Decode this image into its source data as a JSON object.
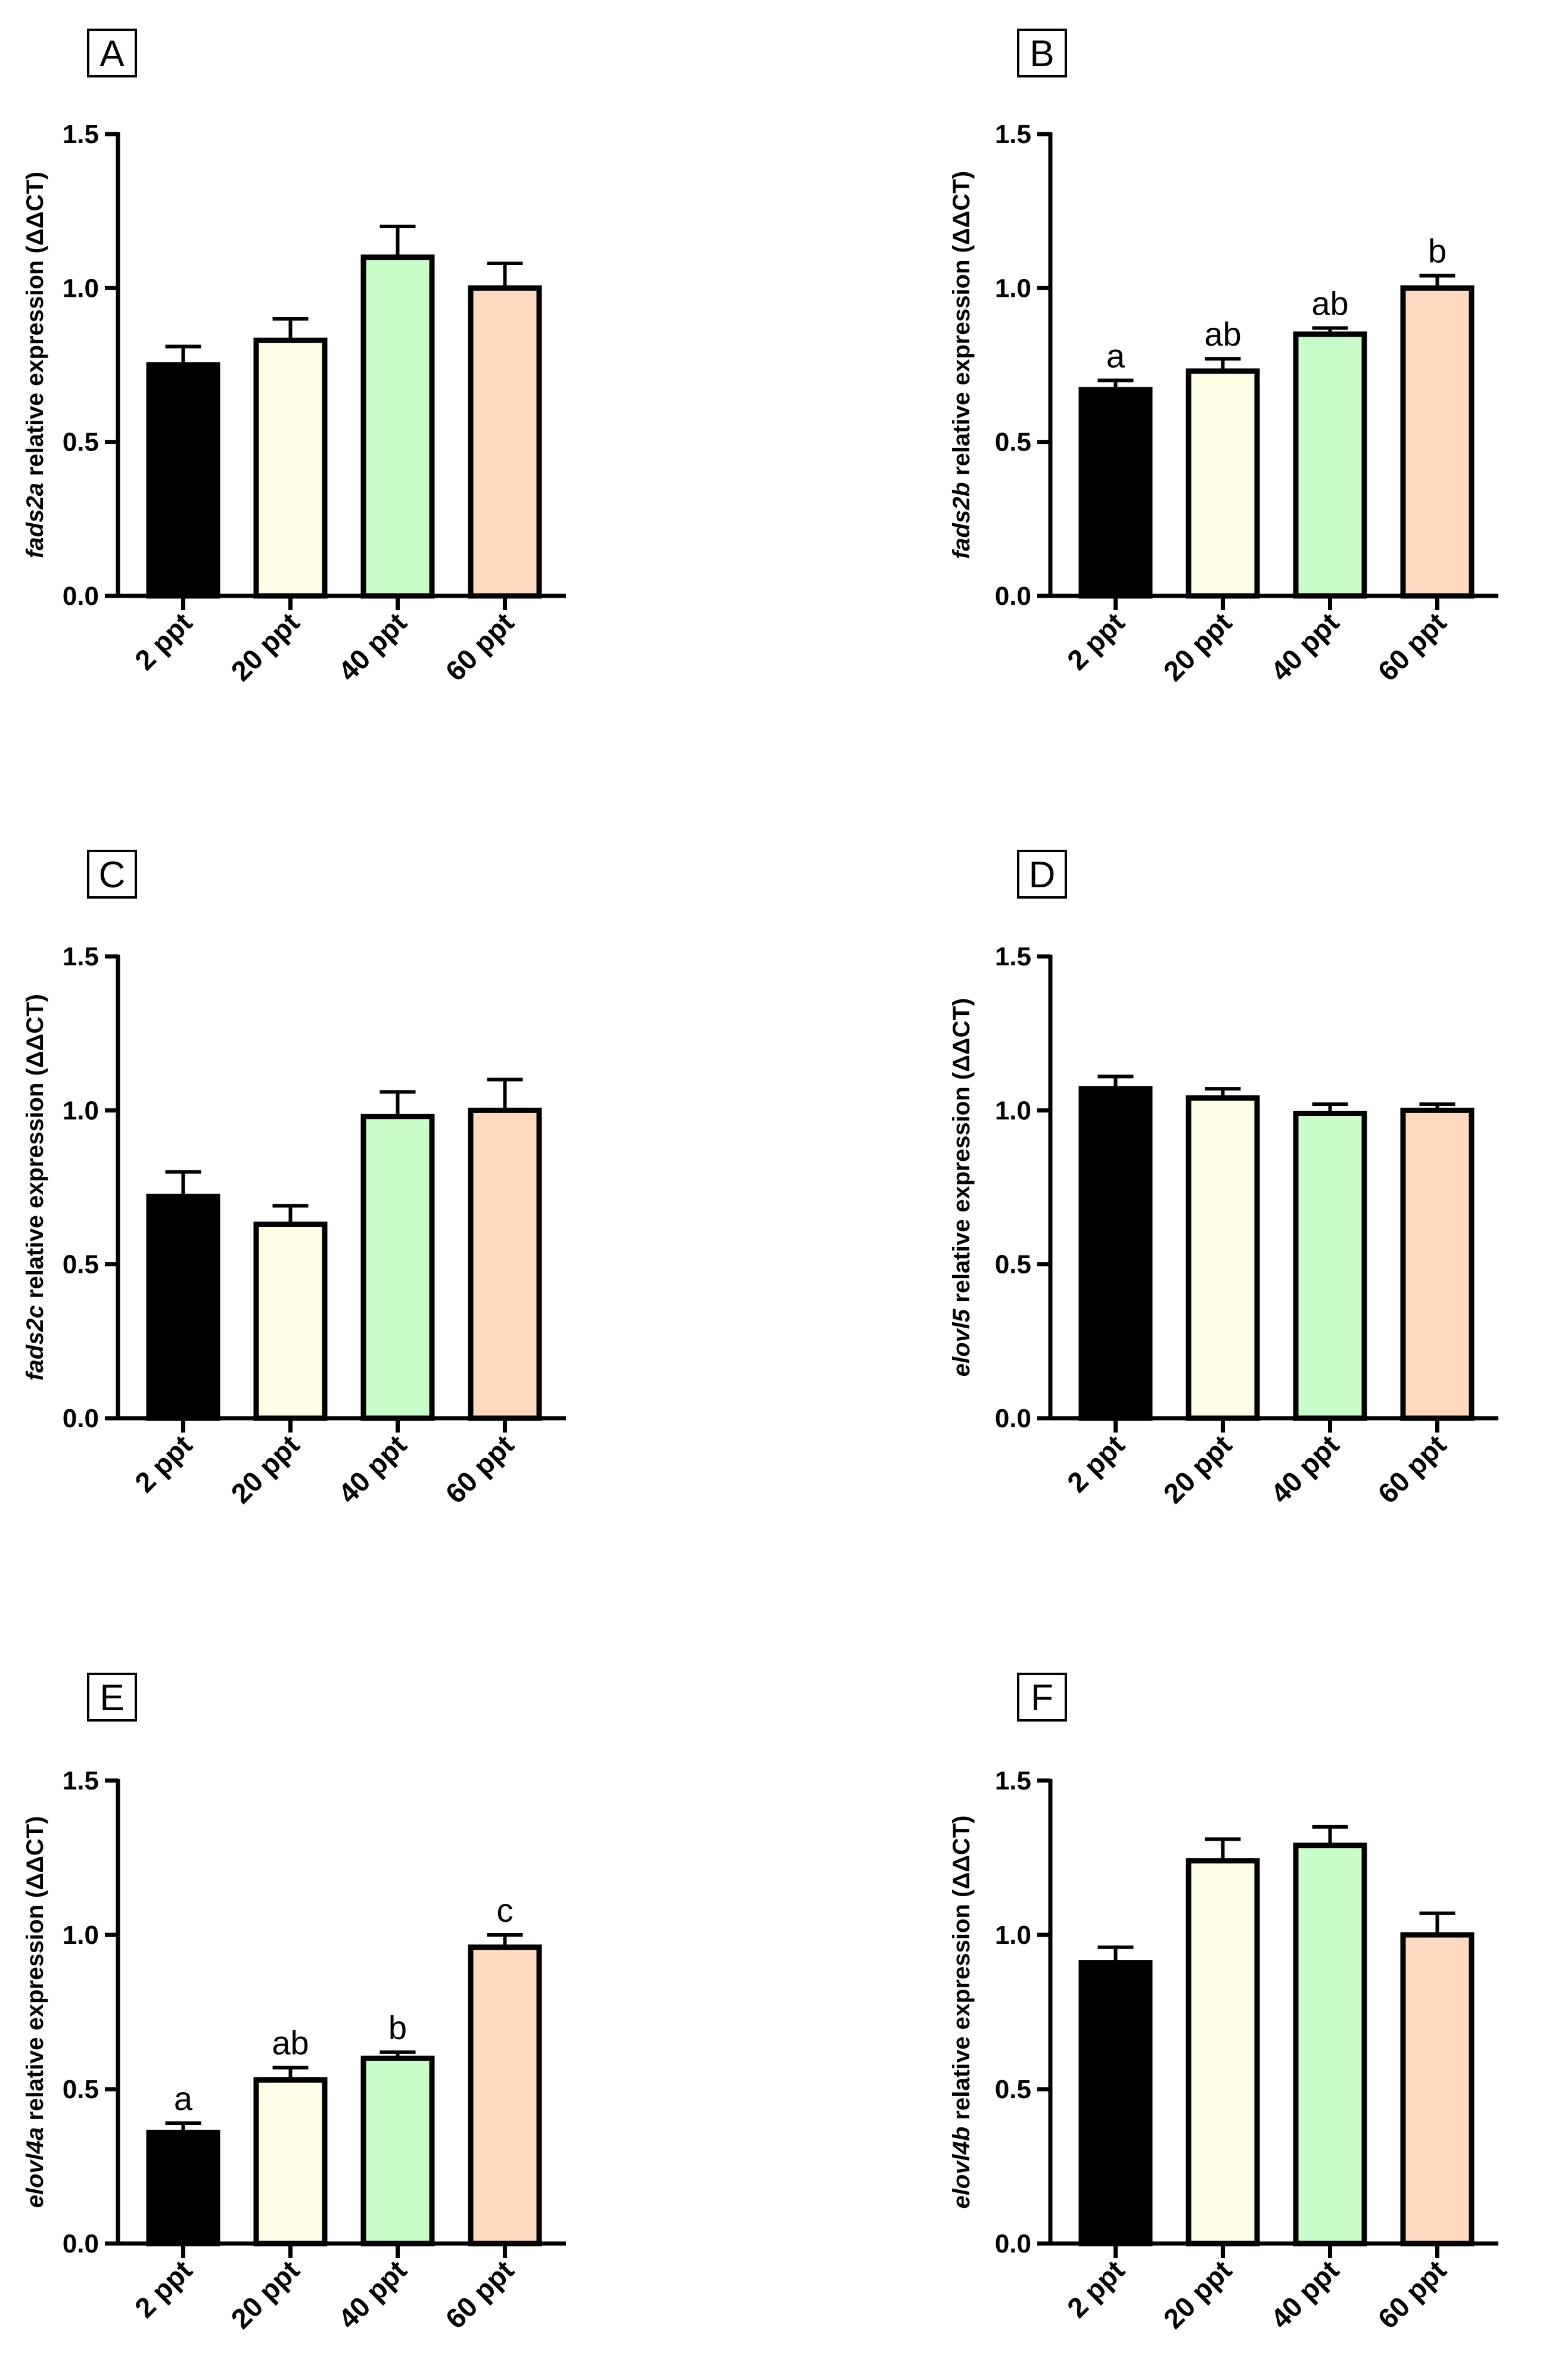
{
  "figure": {
    "bar_colors": [
      "#000000",
      "#fffde6",
      "#c8fcc9",
      "#fdd9bf"
    ],
    "categories": [
      "2 ppt",
      "20 ppt",
      "40 ppt",
      "60 ppt"
    ]
  },
  "chart_data": [
    {
      "panel": "A",
      "type": "bar",
      "gene": "fads2a",
      "ylabel_suffix": " relative expression (ΔΔCT)",
      "categories": [
        "2 ppt",
        "20 ppt",
        "40 ppt",
        "60 ppt"
      ],
      "values": [
        0.75,
        0.83,
        1.1,
        1.0
      ],
      "errors": [
        0.06,
        0.07,
        0.1,
        0.08
      ],
      "significance": [],
      "ylim": [
        0,
        1.5
      ],
      "yticks": [
        "0.0",
        "0.5",
        "1.0",
        "1.5"
      ]
    },
    {
      "panel": "B",
      "type": "bar",
      "gene": "fads2b",
      "ylabel_suffix": " relative expression (ΔΔCT)",
      "categories": [
        "2 ppt",
        "20 ppt",
        "40 ppt",
        "60 ppt"
      ],
      "values": [
        0.67,
        0.73,
        0.85,
        1.0
      ],
      "errors": [
        0.03,
        0.04,
        0.02,
        0.04
      ],
      "significance": [
        "a",
        "ab",
        "ab",
        "b"
      ],
      "ylim": [
        0,
        1.5
      ],
      "yticks": [
        "0.0",
        "0.5",
        "1.0",
        "1.5"
      ]
    },
    {
      "panel": "C",
      "type": "bar",
      "gene": "fads2c",
      "ylabel_suffix": " relative expression (ΔΔCT)",
      "categories": [
        "2 ppt",
        "20 ppt",
        "40 ppt",
        "60 ppt"
      ],
      "values": [
        0.72,
        0.63,
        0.98,
        1.0
      ],
      "errors": [
        0.08,
        0.06,
        0.08,
        0.1
      ],
      "significance": [],
      "ylim": [
        0,
        1.5
      ],
      "yticks": [
        "0.0",
        "0.5",
        "1.0",
        "1.5"
      ]
    },
    {
      "panel": "D",
      "type": "bar",
      "gene": "elovl5",
      "ylabel_suffix": " relative expression (ΔΔCT)",
      "categories": [
        "2 ppt",
        "20 ppt",
        "40 ppt",
        "60 ppt"
      ],
      "values": [
        1.07,
        1.04,
        0.99,
        1.0
      ],
      "errors": [
        0.04,
        0.03,
        0.03,
        0.02
      ],
      "significance": [],
      "ylim": [
        0,
        1.5
      ],
      "yticks": [
        "0.0",
        "0.5",
        "1.0",
        "1.5"
      ]
    },
    {
      "panel": "E",
      "type": "bar",
      "gene": "elovl4a",
      "ylabel_suffix": " relative expression (ΔΔCT)",
      "categories": [
        "2 ppt",
        "20 ppt",
        "40 ppt",
        "60 ppt"
      ],
      "values": [
        0.36,
        0.53,
        0.6,
        0.96
      ],
      "errors": [
        0.03,
        0.04,
        0.02,
        0.04
      ],
      "significance": [
        "a",
        "ab",
        "b",
        "c"
      ],
      "ylim": [
        0,
        1.5
      ],
      "yticks": [
        "0.0",
        "0.5",
        "1.0",
        "1.5"
      ]
    },
    {
      "panel": "F",
      "type": "bar",
      "gene": "elovl4b",
      "ylabel_suffix": " relative expression (ΔΔCT)",
      "categories": [
        "2 ppt",
        "20 ppt",
        "40 ppt",
        "60 ppt"
      ],
      "values": [
        0.91,
        1.24,
        1.29,
        1.0
      ],
      "errors": [
        0.05,
        0.07,
        0.06,
        0.07
      ],
      "significance": [],
      "ylim": [
        0,
        1.5
      ],
      "yticks": [
        "0.0",
        "0.5",
        "1.0",
        "1.5"
      ]
    }
  ]
}
